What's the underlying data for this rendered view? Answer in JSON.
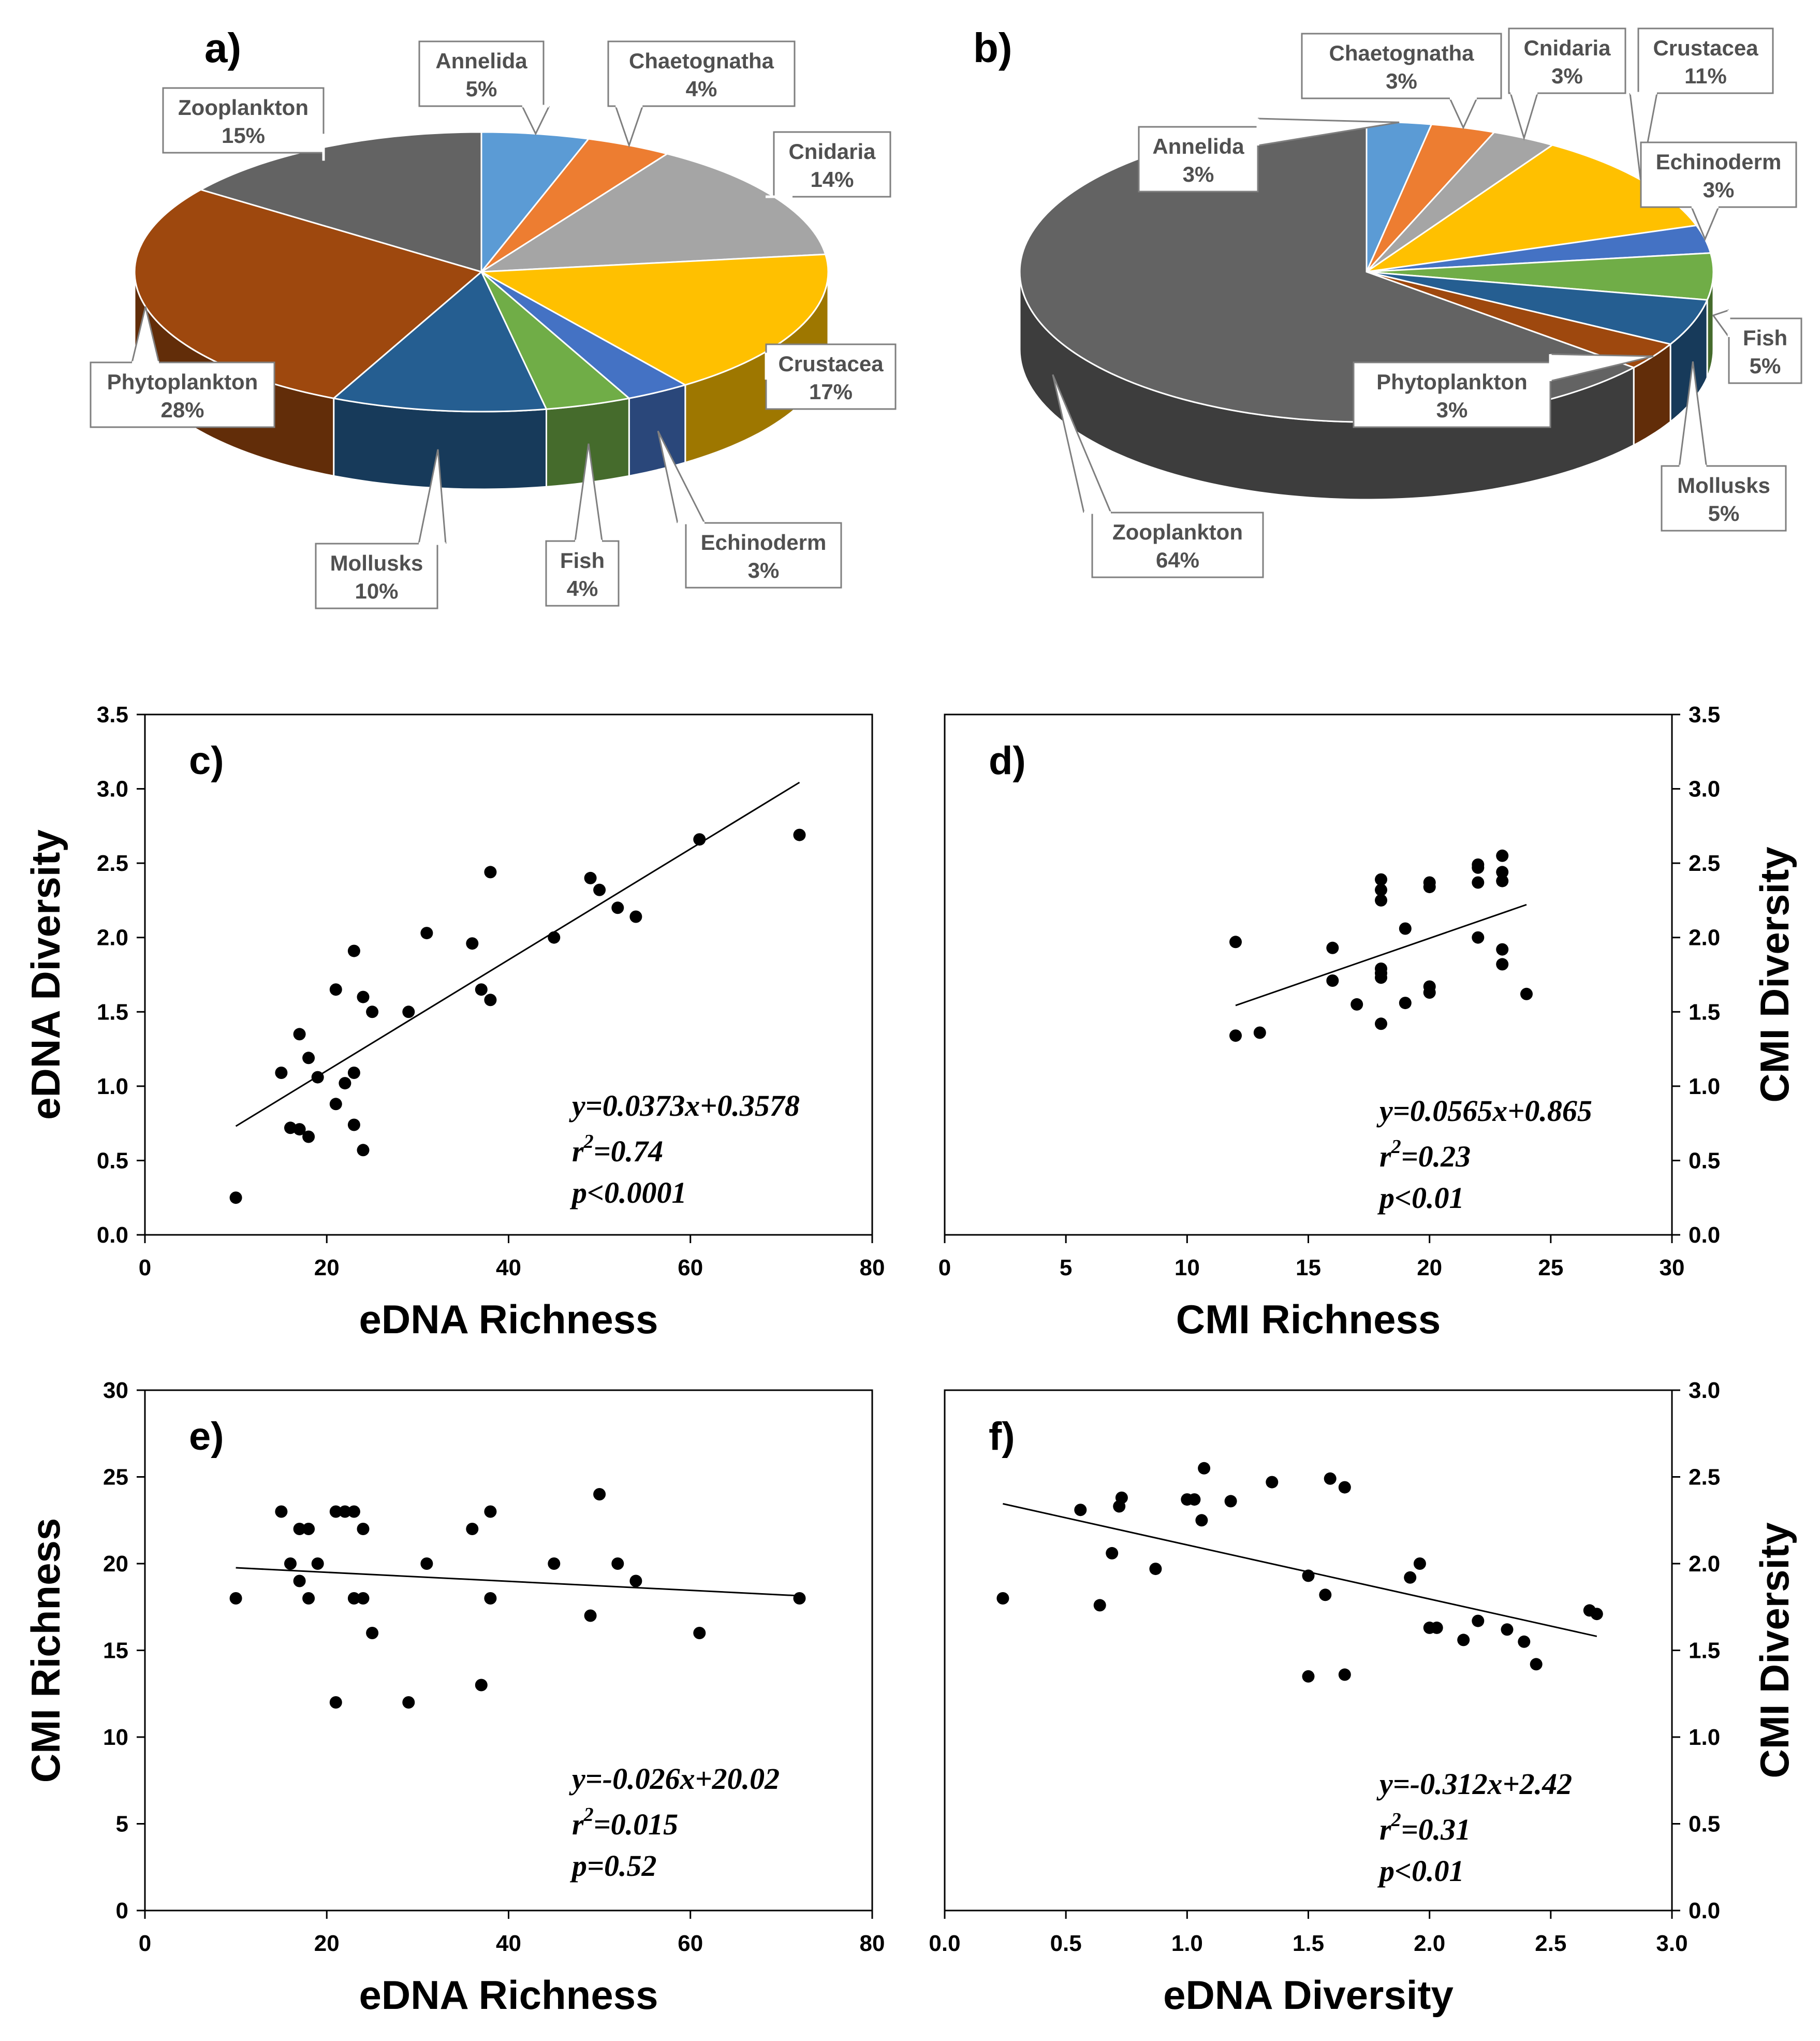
{
  "chart_data": [
    {
      "type": "pie",
      "panel": "a)",
      "slices": [
        {
          "label": "Annelida",
          "value": 5,
          "pct": "5%",
          "color": "#5b9bd5"
        },
        {
          "label": "Chaetognatha",
          "value": 4,
          "pct": "4%",
          "color": "#ed7d31"
        },
        {
          "label": "Cnidaria",
          "value": 14,
          "pct": "14%",
          "color": "#a5a5a5"
        },
        {
          "label": "Crustacea",
          "value": 17,
          "pct": "17%",
          "color": "#ffc000"
        },
        {
          "label": "Echinoderm",
          "value": 3,
          "pct": "3%",
          "color": "#4472c4"
        },
        {
          "label": "Fish",
          "value": 4,
          "pct": "4%",
          "color": "#70ad47"
        },
        {
          "label": "Mollusks",
          "value": 10,
          "pct": "10%",
          "color": "#255e91"
        },
        {
          "label": "Phytoplankton",
          "value": 28,
          "pct": "28%",
          "color": "#9e480e"
        },
        {
          "label": "Zooplankton",
          "value": 15,
          "pct": "15%",
          "color": "#636363"
        }
      ]
    },
    {
      "type": "pie",
      "panel": "b)",
      "slices": [
        {
          "label": "Annelida",
          "value": 3,
          "pct": "3%",
          "color": "#5b9bd5"
        },
        {
          "label": "Chaetognatha",
          "value": 3,
          "pct": "3%",
          "color": "#ed7d31"
        },
        {
          "label": "Cnidaria",
          "value": 3,
          "pct": "3%",
          "color": "#a5a5a5"
        },
        {
          "label": "Crustacea",
          "value": 11,
          "pct": "11%",
          "color": "#ffc000"
        },
        {
          "label": "Echinoderm",
          "value": 3,
          "pct": "3%",
          "color": "#4472c4"
        },
        {
          "label": "Fish",
          "value": 5,
          "pct": "5%",
          "color": "#70ad47"
        },
        {
          "label": "Mollusks",
          "value": 5,
          "pct": "5%",
          "color": "#255e91"
        },
        {
          "label": "Phytoplankton",
          "value": 3,
          "pct": "3%",
          "color": "#9e480e"
        },
        {
          "label": "Zooplankton",
          "value": 64,
          "pct": "64%",
          "color": "#636363"
        }
      ]
    },
    {
      "type": "scatter",
      "panel": "c)",
      "xlabel": "eDNA Richness",
      "ylabel": "eDNA Diversity",
      "y_axis_side": "left",
      "xlim": [
        0,
        80
      ],
      "ylim": [
        0,
        3.5
      ],
      "xticks": [
        "0",
        "20",
        "40",
        "60",
        "80"
      ],
      "yticks": [
        "0.0",
        "0.5",
        "1.0",
        "1.5",
        "2.0",
        "2.5",
        "3.0",
        "3.5"
      ],
      "points": [
        [
          10,
          0.25
        ],
        [
          15,
          1.09
        ],
        [
          16,
          0.72
        ],
        [
          17,
          0.71
        ],
        [
          17,
          1.35
        ],
        [
          18,
          0.66
        ],
        [
          18,
          1.19
        ],
        [
          19,
          1.06
        ],
        [
          21,
          0.88
        ],
        [
          21,
          1.65
        ],
        [
          22,
          1.02
        ],
        [
          23,
          1.09
        ],
        [
          23,
          1.91
        ],
        [
          23,
          0.74
        ],
        [
          24,
          0.57
        ],
        [
          24,
          1.6
        ],
        [
          25,
          1.5
        ],
        [
          29,
          1.5
        ],
        [
          31,
          2.03
        ],
        [
          36,
          1.96
        ],
        [
          37,
          1.65
        ],
        [
          38,
          2.44
        ],
        [
          38,
          1.58
        ],
        [
          45,
          2.0
        ],
        [
          49,
          2.4
        ],
        [
          50,
          2.32
        ],
        [
          52,
          2.2
        ],
        [
          54,
          2.14
        ],
        [
          61,
          2.66
        ],
        [
          72,
          2.69
        ]
      ],
      "fit": {
        "slope": 0.0373,
        "intercept": 0.3578,
        "x_range": [
          10,
          72
        ]
      },
      "equation": "y=0.0373x+0.3578",
      "r2_value": "=0.74",
      "p_text": "p<0.0001"
    },
    {
      "type": "scatter",
      "panel": "d)",
      "xlabel": "CMI Richness",
      "ylabel": "CMI Diversity",
      "y_axis_side": "right",
      "xlim": [
        0,
        30
      ],
      "ylim": [
        0,
        3.5
      ],
      "xticks": [
        "0",
        "5",
        "10",
        "15",
        "20",
        "25",
        "30"
      ],
      "yticks": [
        "0.0",
        "0.5",
        "1.0",
        "1.5",
        "2.0",
        "2.5",
        "3.0",
        "3.5"
      ],
      "points": [
        [
          12,
          1.97
        ],
        [
          12,
          1.34
        ],
        [
          13,
          1.36
        ],
        [
          16,
          1.93
        ],
        [
          16,
          1.71
        ],
        [
          17,
          1.55
        ],
        [
          18,
          2.39
        ],
        [
          18,
          2.32
        ],
        [
          18,
          2.25
        ],
        [
          18,
          1.79
        ],
        [
          18,
          1.76
        ],
        [
          18,
          1.73
        ],
        [
          18,
          1.42
        ],
        [
          19,
          2.06
        ],
        [
          19,
          1.56
        ],
        [
          20,
          2.37
        ],
        [
          20,
          2.34
        ],
        [
          20,
          1.67
        ],
        [
          20,
          1.63
        ],
        [
          22,
          2.49
        ],
        [
          22,
          2.47
        ],
        [
          22,
          2.37
        ],
        [
          22,
          2.0
        ],
        [
          23,
          2.55
        ],
        [
          23,
          2.44
        ],
        [
          23,
          2.38
        ],
        [
          23,
          1.92
        ],
        [
          23,
          1.82
        ],
        [
          24,
          1.62
        ]
      ],
      "fit": {
        "slope": 0.0565,
        "intercept": 0.865,
        "x_range": [
          12,
          24
        ]
      },
      "equation": "y=0.0565x+0.865",
      "r2_value": "=0.23",
      "p_text": "p<0.01"
    },
    {
      "type": "scatter",
      "panel": "e)",
      "xlabel": "eDNA Richness",
      "ylabel": "CMI Richness",
      "y_axis_side": "left",
      "xlim": [
        0,
        80
      ],
      "ylim": [
        0,
        30
      ],
      "xticks": [
        "0",
        "20",
        "40",
        "60",
        "80"
      ],
      "yticks": [
        "0",
        "5",
        "10",
        "15",
        "20",
        "25",
        "30"
      ],
      "points": [
        [
          10,
          18
        ],
        [
          15,
          23
        ],
        [
          16,
          20
        ],
        [
          17,
          22
        ],
        [
          17,
          19
        ],
        [
          18,
          22
        ],
        [
          18,
          18
        ],
        [
          19,
          20
        ],
        [
          21,
          23
        ],
        [
          21,
          12
        ],
        [
          22,
          23
        ],
        [
          23,
          23
        ],
        [
          23,
          18
        ],
        [
          24,
          22
        ],
        [
          24,
          18
        ],
        [
          25,
          16
        ],
        [
          29,
          12
        ],
        [
          31,
          20
        ],
        [
          36,
          22
        ],
        [
          37,
          13
        ],
        [
          38,
          23
        ],
        [
          38,
          18
        ],
        [
          45,
          20
        ],
        [
          49,
          17
        ],
        [
          50,
          24
        ],
        [
          52,
          20
        ],
        [
          54,
          19
        ],
        [
          61,
          16
        ],
        [
          72,
          18
        ]
      ],
      "fit": {
        "slope": -0.026,
        "intercept": 20.02,
        "x_range": [
          10,
          72
        ]
      },
      "equation": "y=-0.026x+20.02",
      "r2_value": "=0.015",
      "p_text": "p=0.52"
    },
    {
      "type": "scatter",
      "panel": "f)",
      "xlabel": "eDNA Diversity",
      "ylabel": "CMI Diversity",
      "y_axis_side": "right",
      "xlim": [
        0,
        3.0
      ],
      "ylim": [
        0,
        3.0
      ],
      "xticks": [
        "0.0",
        "0.5",
        "1.0",
        "1.5",
        "2.0",
        "2.5",
        "3.0"
      ],
      "yticks": [
        "0.0",
        "0.5",
        "1.0",
        "1.5",
        "2.0",
        "2.5",
        "3.0"
      ],
      "points": [
        [
          0.24,
          1.8
        ],
        [
          0.56,
          2.31
        ],
        [
          0.64,
          1.76
        ],
        [
          0.69,
          2.06
        ],
        [
          0.72,
          2.33
        ],
        [
          0.73,
          2.38
        ],
        [
          0.87,
          1.97
        ],
        [
          1.0,
          2.37
        ],
        [
          1.03,
          2.37
        ],
        [
          1.06,
          2.25
        ],
        [
          1.07,
          2.55
        ],
        [
          1.18,
          2.36
        ],
        [
          1.35,
          2.47
        ],
        [
          1.5,
          1.35
        ],
        [
          1.5,
          1.93
        ],
        [
          1.57,
          1.82
        ],
        [
          1.59,
          2.49
        ],
        [
          1.65,
          1.36
        ],
        [
          1.65,
          2.44
        ],
        [
          1.92,
          1.92
        ],
        [
          1.96,
          2.0
        ],
        [
          2.0,
          1.63
        ],
        [
          2.03,
          1.63
        ],
        [
          2.14,
          1.56
        ],
        [
          2.2,
          1.67
        ],
        [
          2.32,
          1.62
        ],
        [
          2.39,
          1.55
        ],
        [
          2.44,
          1.42
        ],
        [
          2.66,
          1.73
        ],
        [
          2.69,
          1.71
        ]
      ],
      "fit": {
        "slope": -0.312,
        "intercept": 2.42,
        "x_range": [
          0.24,
          2.69
        ]
      },
      "equation": "y=-0.312x+2.42",
      "r2_value": "=0.31",
      "p_text": "p<0.01"
    }
  ]
}
